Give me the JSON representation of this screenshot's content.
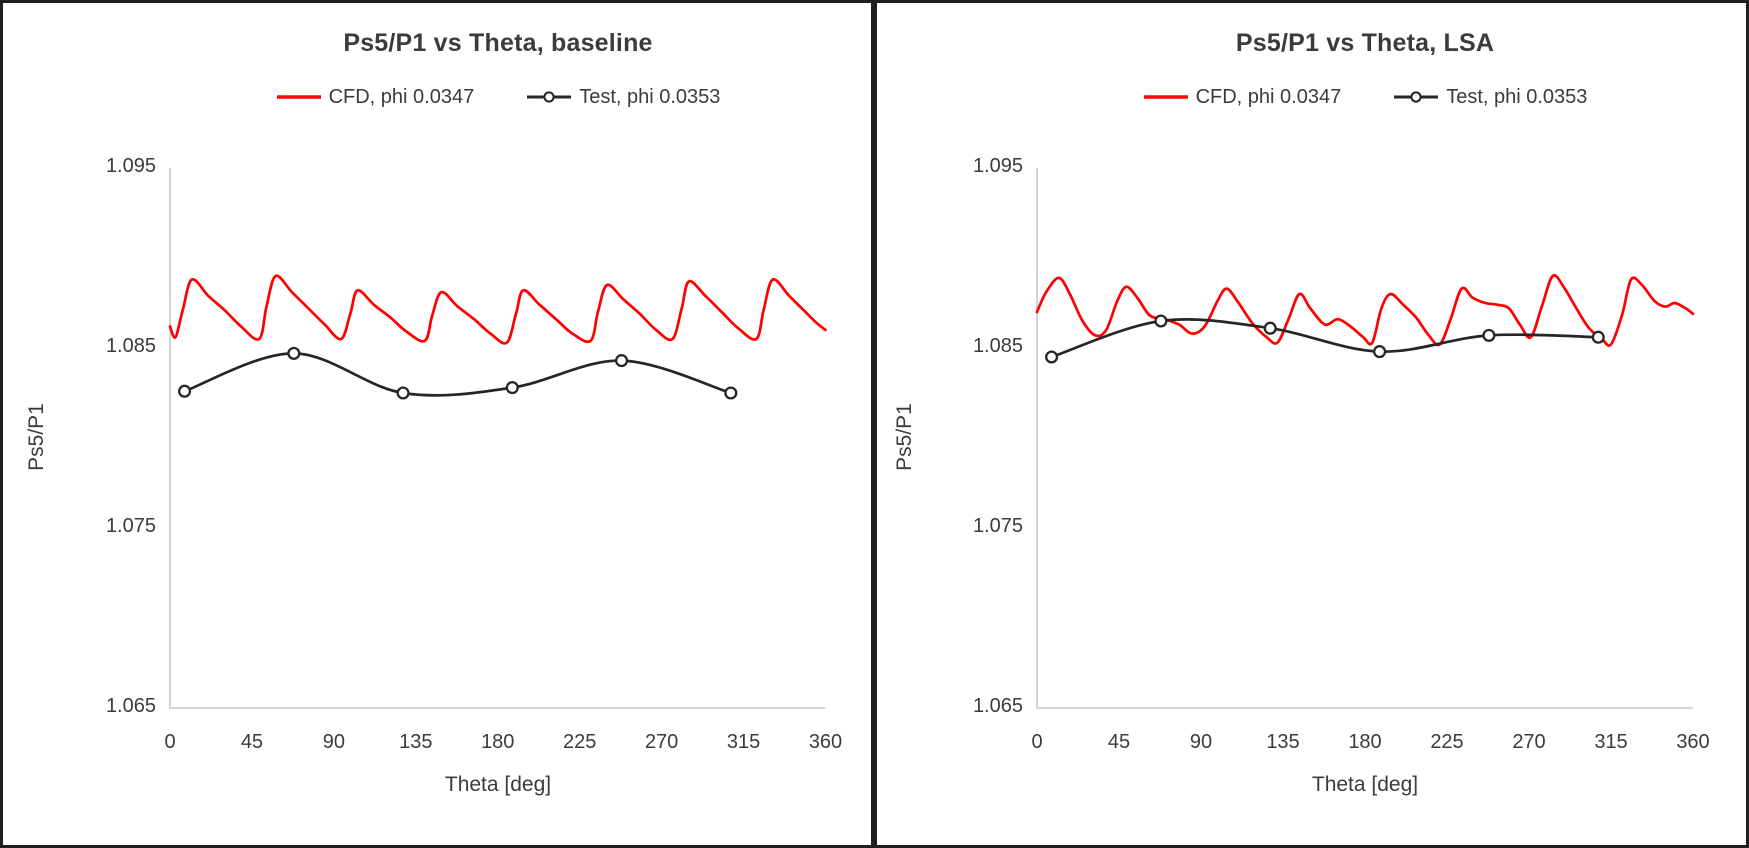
{
  "style": {
    "cfd_color": "#ff0000",
    "test_color": "#262626",
    "axis_color": "#c8c8c8",
    "text_color": "#3b3b3b",
    "panel_border_color": "#1f1f1f"
  },
  "panels": [
    {
      "title": "Ps5/P1 vs Theta, baseline",
      "x_axis_title": "Theta [deg]",
      "y_axis_title": "Ps5/P1",
      "legend": [
        {
          "label": "CFD, phi 0.0347"
        },
        {
          "label": "Test, phi 0.0353"
        }
      ]
    },
    {
      "title": "Ps5/P1 vs Theta, LSA",
      "x_axis_title": "Theta [deg]",
      "y_axis_title": "Ps5/P1",
      "legend": [
        {
          "label": "CFD, phi 0.0347"
        },
        {
          "label": "Test, phi 0.0353"
        }
      ]
    }
  ],
  "chart_data": [
    {
      "type": "line",
      "title": "Ps5/P1 vs Theta, baseline",
      "xlabel": "Theta [deg]",
      "ylabel": "Ps5/P1",
      "xlim": [
        0,
        360
      ],
      "ylim": [
        1.065,
        1.095
      ],
      "xticks": [
        0,
        45,
        90,
        135,
        180,
        225,
        270,
        315,
        360
      ],
      "yticks": [
        1.065,
        1.075,
        1.085,
        1.095
      ],
      "grid": false,
      "legend_position": "top",
      "series": [
        {
          "name": "CFD, phi 0.0347",
          "color": "#ff0000",
          "marker": "none",
          "x": [
            0,
            3,
            7,
            12,
            21,
            30,
            39,
            49,
            53,
            58,
            67,
            76,
            85,
            94,
            99,
            103,
            112,
            121,
            130,
            140,
            144,
            149,
            158,
            167,
            176,
            185,
            190,
            194,
            203,
            212,
            221,
            231,
            235,
            240,
            249,
            258,
            267,
            276,
            281,
            285,
            294,
            303,
            312,
            322,
            326,
            331,
            340,
            349,
            355,
            360
          ],
          "y": [
            1.0862,
            1.0856,
            1.0871,
            1.0888,
            1.0879,
            1.0871,
            1.0862,
            1.0855,
            1.0873,
            1.089,
            1.0881,
            1.0872,
            1.0863,
            1.0855,
            1.0869,
            1.0882,
            1.0874,
            1.0867,
            1.0859,
            1.0854,
            1.0868,
            1.0881,
            1.0873,
            1.0866,
            1.0858,
            1.0853,
            1.0869,
            1.0882,
            1.0874,
            1.0866,
            1.0858,
            1.0854,
            1.087,
            1.0885,
            1.0877,
            1.0869,
            1.086,
            1.0855,
            1.0872,
            1.0887,
            1.0879,
            1.087,
            1.0861,
            1.0855,
            1.0871,
            1.0888,
            1.0879,
            1.087,
            1.0864,
            1.086
          ]
        },
        {
          "name": "Test, phi 0.0353",
          "color": "#262626",
          "marker": "circle-open",
          "x": [
            8,
            68,
            128,
            188,
            248,
            308
          ],
          "y": [
            1.0826,
            1.0847,
            1.0825,
            1.0828,
            1.0843,
            1.0825
          ]
        }
      ]
    },
    {
      "type": "line",
      "title": "Ps5/P1 vs Theta, LSA",
      "xlabel": "Theta [deg]",
      "ylabel": "Ps5/P1",
      "xlim": [
        0,
        360
      ],
      "ylim": [
        1.065,
        1.095
      ],
      "xticks": [
        0,
        45,
        90,
        135,
        180,
        225,
        270,
        315,
        360
      ],
      "yticks": [
        1.065,
        1.075,
        1.085,
        1.095
      ],
      "grid": false,
      "legend_position": "top",
      "series": [
        {
          "name": "CFD, phi 0.0347",
          "color": "#ff0000",
          "marker": "none",
          "x": [
            0,
            5,
            12,
            18,
            25,
            32,
            38,
            44,
            49,
            55,
            62,
            70,
            78,
            85,
            92,
            99,
            104,
            110,
            118,
            126,
            132,
            138,
            144,
            150,
            158,
            165,
            172,
            179,
            184,
            189,
            194,
            201,
            208,
            215,
            221,
            227,
            233,
            239,
            246,
            253,
            259,
            265,
            271,
            277,
            283,
            289,
            296,
            303,
            310,
            315,
            321,
            326,
            332,
            339,
            345,
            350,
            356,
            360
          ],
          "y": [
            1.087,
            1.0881,
            1.0889,
            1.088,
            1.0865,
            1.0857,
            1.086,
            1.0876,
            1.0884,
            1.0878,
            1.0868,
            1.0866,
            1.0863,
            1.0858,
            1.0862,
            1.0876,
            1.0883,
            1.0876,
            1.0864,
            1.0856,
            1.0853,
            1.0866,
            1.088,
            1.0872,
            1.0863,
            1.0866,
            1.0862,
            1.0856,
            1.0853,
            1.0872,
            1.088,
            1.0874,
            1.0867,
            1.0857,
            1.0852,
            1.0866,
            1.0883,
            1.0878,
            1.0875,
            1.0874,
            1.0872,
            1.0863,
            1.0856,
            1.0873,
            1.089,
            1.0884,
            1.0872,
            1.0861,
            1.0855,
            1.0852,
            1.0868,
            1.0888,
            1.0885,
            1.0876,
            1.0873,
            1.0875,
            1.0872,
            1.0869
          ]
        },
        {
          "name": "Test, phi 0.0353",
          "color": "#262626",
          "marker": "circle-open",
          "x": [
            8,
            68,
            128,
            188,
            248,
            308
          ],
          "y": [
            1.0845,
            1.0865,
            1.0861,
            1.0848,
            1.0857,
            1.0856
          ]
        }
      ]
    }
  ]
}
